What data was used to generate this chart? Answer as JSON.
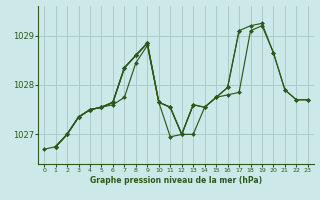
{
  "title": "Graphe pression niveau de la mer (hPa)",
  "bg_color": "#cce8e8",
  "grid_color": "#aacccc",
  "line_color": "#2d5a1b",
  "marker_color": "#2d5a1b",
  "xlim": [
    -0.5,
    23.5
  ],
  "ylim": [
    1026.4,
    1029.6
  ],
  "yticks": [
    1027,
    1028,
    1029
  ],
  "xticks": [
    0,
    1,
    2,
    3,
    4,
    5,
    6,
    7,
    8,
    9,
    10,
    11,
    12,
    13,
    14,
    15,
    16,
    17,
    18,
    19,
    20,
    21,
    22,
    23
  ],
  "series": [
    {
      "x": [
        0,
        1,
        2,
        3,
        4,
        5,
        6,
        7,
        8,
        9,
        10,
        11,
        12,
        13,
        14,
        15,
        16,
        17,
        18,
        19,
        20,
        21,
        22,
        23
      ],
      "y": [
        1026.7,
        1026.75,
        1027.0,
        1027.35,
        1027.5,
        1027.55,
        1027.6,
        1027.75,
        1028.45,
        1028.8,
        1027.65,
        1026.95,
        1027.0,
        1027.0,
        1027.55,
        1027.75,
        1027.8,
        1027.85,
        1029.1,
        1029.2,
        1028.65,
        1027.9,
        1027.7,
        1027.7
      ]
    },
    {
      "x": [
        1,
        2,
        3,
        4,
        5,
        6,
        7,
        8,
        9
      ],
      "y": [
        1026.75,
        1027.0,
        1027.35,
        1027.5,
        1027.55,
        1027.65,
        1028.35,
        1028.6,
        1028.85
      ]
    },
    {
      "x": [
        1,
        2,
        3,
        4,
        5,
        6,
        7,
        8,
        9,
        10,
        11,
        12,
        13
      ],
      "y": [
        1026.75,
        1027.0,
        1027.35,
        1027.5,
        1027.55,
        1027.65,
        1028.35,
        1028.6,
        1028.85,
        1027.65,
        1027.55,
        1027.0,
        1027.6
      ]
    },
    {
      "x": [
        1,
        2,
        3,
        4,
        5,
        6,
        7,
        8,
        9,
        10,
        11,
        12,
        13,
        14,
        15,
        16,
        17
      ],
      "y": [
        1026.75,
        1027.0,
        1027.35,
        1027.5,
        1027.55,
        1027.65,
        1028.35,
        1028.6,
        1028.85,
        1027.65,
        1027.55,
        1027.0,
        1027.6,
        1027.55,
        1027.75,
        1027.95,
        1029.1
      ]
    },
    {
      "x": [
        1,
        2,
        3,
        4,
        5,
        6,
        7,
        8,
        9,
        10,
        11,
        12,
        13,
        14,
        15,
        16,
        17,
        18,
        19,
        20,
        21,
        22,
        23
      ],
      "y": [
        1026.75,
        1027.0,
        1027.35,
        1027.5,
        1027.55,
        1027.65,
        1028.35,
        1028.6,
        1028.85,
        1027.65,
        1027.55,
        1027.0,
        1027.6,
        1027.55,
        1027.75,
        1027.95,
        1029.1,
        1029.2,
        1029.25,
        1028.65,
        1027.9,
        1027.7,
        1027.7
      ]
    }
  ]
}
